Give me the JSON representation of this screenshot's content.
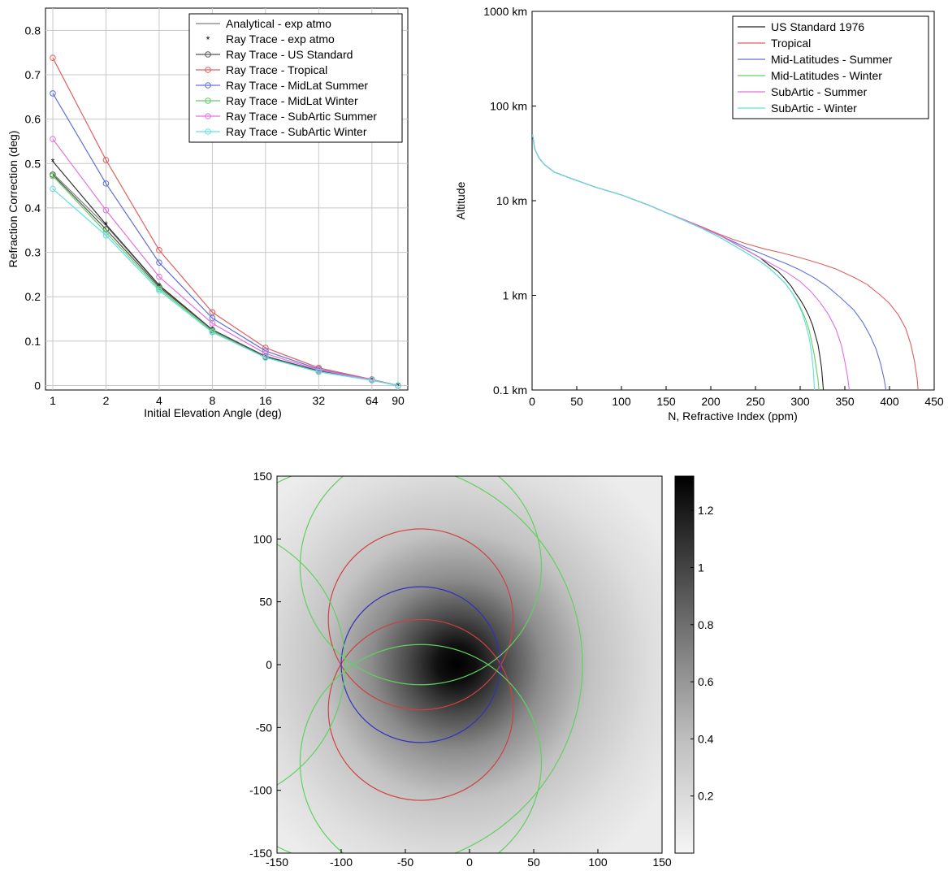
{
  "chart_data": [
    {
      "type": "line",
      "xlabel": "Initial Elevation Angle (deg)",
      "ylabel": "Refraction Correction (deg)",
      "x": [
        1,
        2,
        4,
        8,
        16,
        32,
        64,
        90
      ],
      "x_ticks": [
        "1",
        "2",
        "4",
        "8",
        "16",
        "32",
        "64",
        "90"
      ],
      "y_ticks": [
        "0",
        "0.1",
        "0.2",
        "0.3",
        "0.4",
        "0.5",
        "0.6",
        "0.7",
        "0.8"
      ],
      "x_scale": "log2",
      "ylim": [
        -0.01,
        0.85
      ],
      "grid": true,
      "legend_position": "top-right",
      "series": [
        {
          "name": "Analytical - exp atmo",
          "color": "#808080",
          "marker": "none",
          "values": [
            0.478,
            0.36,
            0.225,
            0.125,
            0.066,
            0.033,
            0.013,
            0.0
          ]
        },
        {
          "name": "Ray Trace - exp atmo",
          "color": "#333333",
          "marker": "star",
          "values": [
            0.505,
            0.363,
            0.226,
            0.126,
            0.066,
            0.033,
            0.013,
            0.0
          ]
        },
        {
          "name": "Ray Trace - US Standard",
          "color": "#555555",
          "marker": "circle",
          "values": [
            0.475,
            0.352,
            0.222,
            0.125,
            0.065,
            0.032,
            0.012,
            0.0
          ]
        },
        {
          "name": "Ray Trace - Tropical",
          "color": "#e06060",
          "marker": "circle",
          "values": [
            0.738,
            0.508,
            0.305,
            0.165,
            0.085,
            0.04,
            0.014,
            0.0
          ]
        },
        {
          "name": "Ray Trace - MidLat Summer",
          "color": "#6070d8",
          "marker": "circle",
          "values": [
            0.658,
            0.455,
            0.277,
            0.152,
            0.078,
            0.037,
            0.013,
            0.0
          ]
        },
        {
          "name": "Ray Trace - MidLat Winter",
          "color": "#60d060",
          "marker": "circle",
          "values": [
            0.472,
            0.345,
            0.218,
            0.122,
            0.063,
            0.031,
            0.012,
            0.0
          ]
        },
        {
          "name": "Ray Trace - SubArtic Summer",
          "color": "#e070e0",
          "marker": "circle",
          "values": [
            0.555,
            0.395,
            0.245,
            0.14,
            0.072,
            0.035,
            0.013,
            0.0
          ]
        },
        {
          "name": "Ray Trace - SubArtic Winter",
          "color": "#60e0e0",
          "marker": "circle",
          "values": [
            0.443,
            0.338,
            0.214,
            0.12,
            0.063,
            0.031,
            0.012,
            0.0
          ]
        }
      ]
    },
    {
      "type": "line",
      "xlabel": "N, Refractive Index (ppm)",
      "ylabel": "Altitude",
      "xlim": [
        0,
        450
      ],
      "x_ticks": [
        "0",
        "50",
        "100",
        "150",
        "200",
        "250",
        "300",
        "350",
        "400",
        "450"
      ],
      "y_ticks": [
        "0.1 km",
        "1 km",
        "10 km",
        "100 km",
        "1000 km"
      ],
      "y_scale": "log",
      "ylim": [
        0.1,
        1000
      ],
      "grid": false,
      "legend_position": "top-right",
      "series": [
        {
          "name": "US Standard 1976",
          "color": "#222222",
          "x": [
            0.5,
            3,
            8,
            14,
            25,
            45,
            70,
            100,
            130,
            150,
            170,
            190,
            210,
            225,
            240,
            255,
            265,
            275,
            283,
            290,
            295,
            300,
            305,
            310,
            314,
            317,
            320,
            322,
            324,
            325,
            326
          ],
          "y": [
            50,
            35,
            28,
            24,
            20,
            17,
            14,
            11.5,
            9,
            7.5,
            6.3,
            5.2,
            4.3,
            3.6,
            3,
            2.5,
            2.1,
            1.8,
            1.5,
            1.25,
            1.05,
            0.9,
            0.75,
            0.6,
            0.48,
            0.38,
            0.3,
            0.23,
            0.17,
            0.13,
            0.1
          ]
        },
        {
          "name": "Tropical",
          "color": "#e06060",
          "x": [
            0.5,
            3,
            8,
            14,
            25,
            45,
            70,
            100,
            130,
            150,
            170,
            190,
            210,
            225,
            240,
            260,
            280,
            300,
            320,
            340,
            360,
            375,
            390,
            400,
            410,
            418,
            424,
            428,
            431,
            432
          ],
          "y": [
            50,
            35,
            28,
            24,
            20,
            17,
            14,
            11.5,
            9,
            7.5,
            6.3,
            5.3,
            4.4,
            3.9,
            3.5,
            3.1,
            2.8,
            2.5,
            2.2,
            1.9,
            1.55,
            1.3,
            1.0,
            0.82,
            0.62,
            0.45,
            0.3,
            0.2,
            0.13,
            0.1
          ]
        },
        {
          "name": "Mid-Latitudes - Summer",
          "color": "#6070d8",
          "x": [
            0.5,
            3,
            8,
            14,
            25,
            45,
            70,
            100,
            130,
            150,
            170,
            190,
            210,
            225,
            240,
            255,
            270,
            285,
            300,
            315,
            330,
            345,
            360,
            370,
            378,
            385,
            390,
            394,
            396
          ],
          "y": [
            50,
            35,
            28,
            24,
            20,
            17,
            14,
            11.5,
            9,
            7.5,
            6.3,
            5.2,
            4.3,
            3.7,
            3.2,
            2.8,
            2.45,
            2.15,
            1.85,
            1.55,
            1.25,
            0.95,
            0.7,
            0.52,
            0.38,
            0.27,
            0.19,
            0.13,
            0.1
          ]
        },
        {
          "name": "Mid-Latitudes - Winter",
          "color": "#60d060",
          "x": [
            0.5,
            3,
            8,
            14,
            25,
            45,
            70,
            100,
            130,
            150,
            170,
            190,
            210,
            225,
            240,
            255,
            265,
            275,
            283,
            290,
            296,
            301,
            306,
            310,
            313,
            316,
            318,
            320,
            321
          ],
          "y": [
            50,
            35,
            28,
            24,
            20,
            17,
            14,
            11.5,
            9,
            7.5,
            6.2,
            5.1,
            4.1,
            3.4,
            2.8,
            2.3,
            1.95,
            1.6,
            1.35,
            1.1,
            0.9,
            0.72,
            0.56,
            0.43,
            0.32,
            0.23,
            0.17,
            0.13,
            0.1
          ]
        },
        {
          "name": "SubArtic - Summer",
          "color": "#e070e0",
          "x": [
            0.5,
            3,
            8,
            14,
            25,
            45,
            70,
            100,
            130,
            150,
            170,
            190,
            210,
            225,
            240,
            255,
            270,
            285,
            300,
            312,
            322,
            332,
            340,
            346,
            350,
            353,
            355
          ],
          "y": [
            50,
            35,
            28,
            24,
            20,
            17,
            14,
            11.5,
            9,
            7.5,
            6.3,
            5.2,
            4.3,
            3.6,
            3.0,
            2.5,
            2.1,
            1.75,
            1.4,
            1.1,
            0.85,
            0.62,
            0.44,
            0.3,
            0.2,
            0.14,
            0.1
          ]
        },
        {
          "name": "SubArtic - Winter",
          "color": "#60e0e0",
          "x": [
            0.5,
            3,
            8,
            14,
            25,
            45,
            70,
            100,
            130,
            150,
            170,
            190,
            210,
            225,
            240,
            255,
            265,
            275,
            283,
            290,
            296,
            302,
            306,
            310,
            313,
            315,
            316
          ],
          "y": [
            50,
            35,
            28,
            24,
            20,
            17,
            14,
            11.5,
            9,
            7.5,
            6.2,
            5.1,
            4.1,
            3.4,
            2.8,
            2.3,
            1.95,
            1.6,
            1.35,
            1.1,
            0.88,
            0.66,
            0.5,
            0.36,
            0.24,
            0.15,
            0.1
          ]
        }
      ]
    },
    {
      "type": "heatmap",
      "xlim": [
        -150,
        150
      ],
      "ylim": [
        -150,
        150
      ],
      "x_ticks": [
        "-150",
        "-100",
        "-50",
        "0",
        "50",
        "100",
        "150"
      ],
      "y_ticks": [
        "-150",
        "-100",
        "-50",
        "0",
        "50",
        "100",
        "150"
      ],
      "colormap": "gray, white (low) to black (high)",
      "colorbar_ticks": [
        "0.2",
        "0.4",
        "0.6",
        "0.8",
        "1",
        "1.2"
      ],
      "colorbar_range": [
        0,
        1.32
      ],
      "peak": {
        "x": -10,
        "y": 0,
        "value": 1.32
      },
      "circles": [
        {
          "color": "#d04040",
          "center": [
            -38,
            36
          ],
          "radius": 72
        },
        {
          "color": "#d04040",
          "center": [
            -38,
            -36
          ],
          "radius": 72
        },
        {
          "color": "#3030c0",
          "center": [
            -38,
            0
          ],
          "radius": 62
        },
        {
          "color": "#60d060",
          "center": [
            -38,
            78
          ],
          "radius": 94
        },
        {
          "color": "#60d060",
          "center": [
            -38,
            -78
          ],
          "radius": 94
        },
        {
          "color": "#60d060",
          "center": [
            -210,
            0
          ],
          "radius": 113
        },
        {
          "color": "#60d060",
          "center": [
            -75,
            0
          ],
          "radius": 163
        }
      ]
    }
  ]
}
